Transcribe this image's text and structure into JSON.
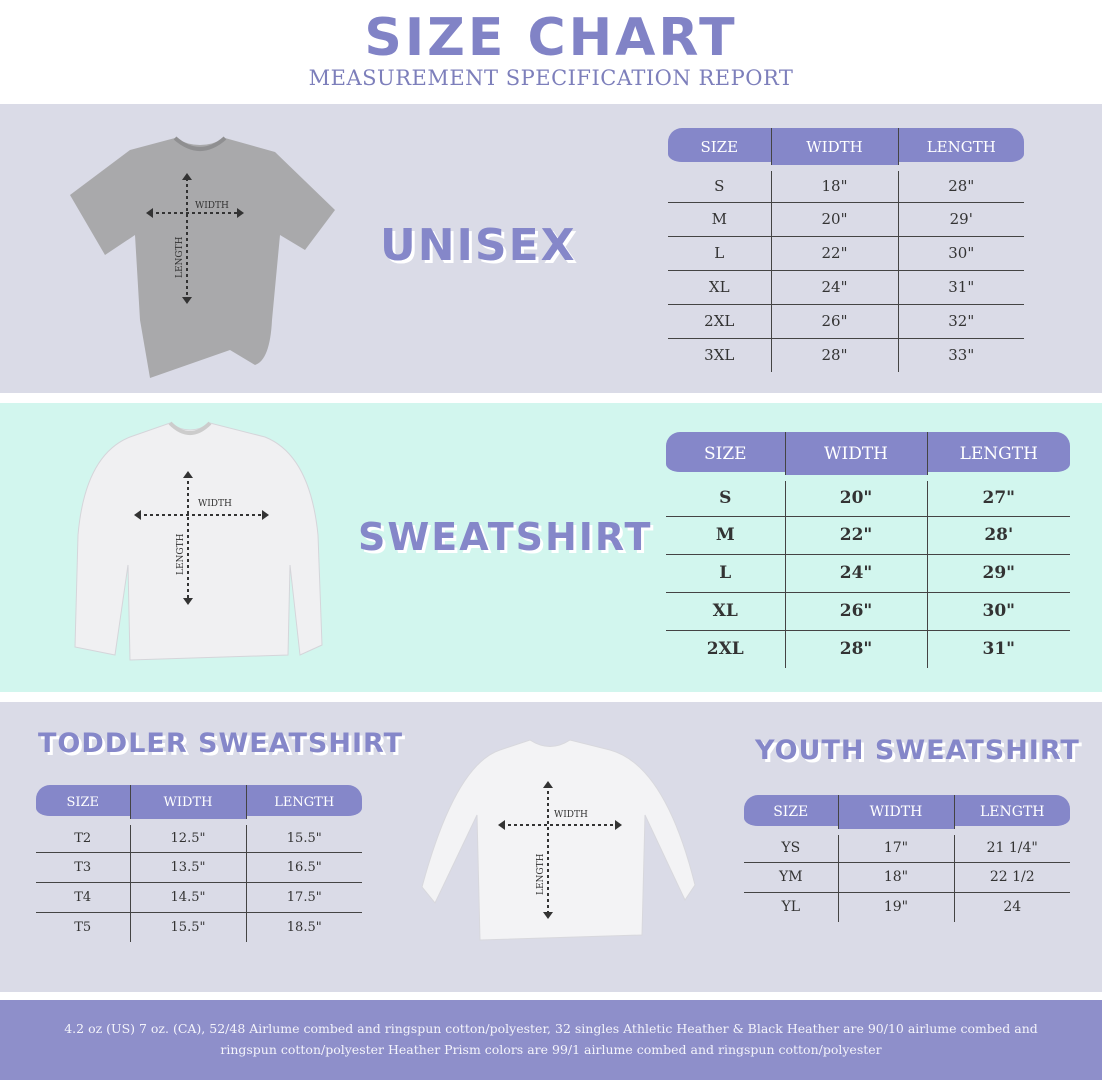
{
  "header": {
    "title": "SIZE CHART",
    "subtitle": "MEASUREMENT SPECIFICATION REPORT"
  },
  "colors": {
    "accent": "#8587c9",
    "section_lavender": "#dadbe7",
    "section_mint": "#d2f6ee",
    "footer": "#8e8fca"
  },
  "diagram": {
    "width_label": "WIDTH",
    "length_label": "LENGTH"
  },
  "sections": [
    {
      "label": "UNISEX",
      "columns": [
        "SIZE",
        "WIDTH",
        "LENGTH"
      ],
      "rows": [
        [
          "S",
          "18\"",
          "28\""
        ],
        [
          "M",
          "20\"",
          "29'"
        ],
        [
          "L",
          "22\"",
          "30\""
        ],
        [
          "XL",
          "24\"",
          "31\""
        ],
        [
          "2XL",
          "26\"",
          "32\""
        ],
        [
          "3XL",
          "28\"",
          "33\""
        ]
      ]
    },
    {
      "label": "SWEATSHIRT",
      "columns": [
        "SIZE",
        "WIDTH",
        "LENGTH"
      ],
      "rows": [
        [
          "S",
          "20\"",
          "27\""
        ],
        [
          "M",
          "22\"",
          "28'"
        ],
        [
          "L",
          "24\"",
          "29\""
        ],
        [
          "XL",
          "26\"",
          "30\""
        ],
        [
          "2XL",
          "28\"",
          "31\""
        ]
      ]
    },
    {
      "label": "TODDLER SWEATSHIRT",
      "columns": [
        "SIZE",
        "WIDTH",
        "LENGTH"
      ],
      "rows": [
        [
          "T2",
          "12.5\"",
          "15.5\""
        ],
        [
          "T3",
          "13.5\"",
          "16.5\""
        ],
        [
          "T4",
          "14.5\"",
          "17.5\""
        ],
        [
          "T5",
          "15.5\"",
          "18.5\""
        ]
      ]
    },
    {
      "label": "YOUTH SWEATSHIRT",
      "columns": [
        "SIZE",
        "WIDTH",
        "LENGTH"
      ],
      "rows": [
        [
          "YS",
          "17\"",
          "21 1/4\""
        ],
        [
          "YM",
          "18\"",
          "22 1/2"
        ],
        [
          "YL",
          "19\"",
          "24"
        ]
      ]
    }
  ],
  "footer": {
    "text": "4.2 oz (US) 7 oz. (CA), 52/48 Airlume combed and ringspun cotton/polyester, 32 singles Athletic Heather & Black Heather are 90/10 airlume combed and ringspun cotton/polyester Heather Prism colors are 99/1 airlume combed and ringspun cotton/polyester"
  }
}
